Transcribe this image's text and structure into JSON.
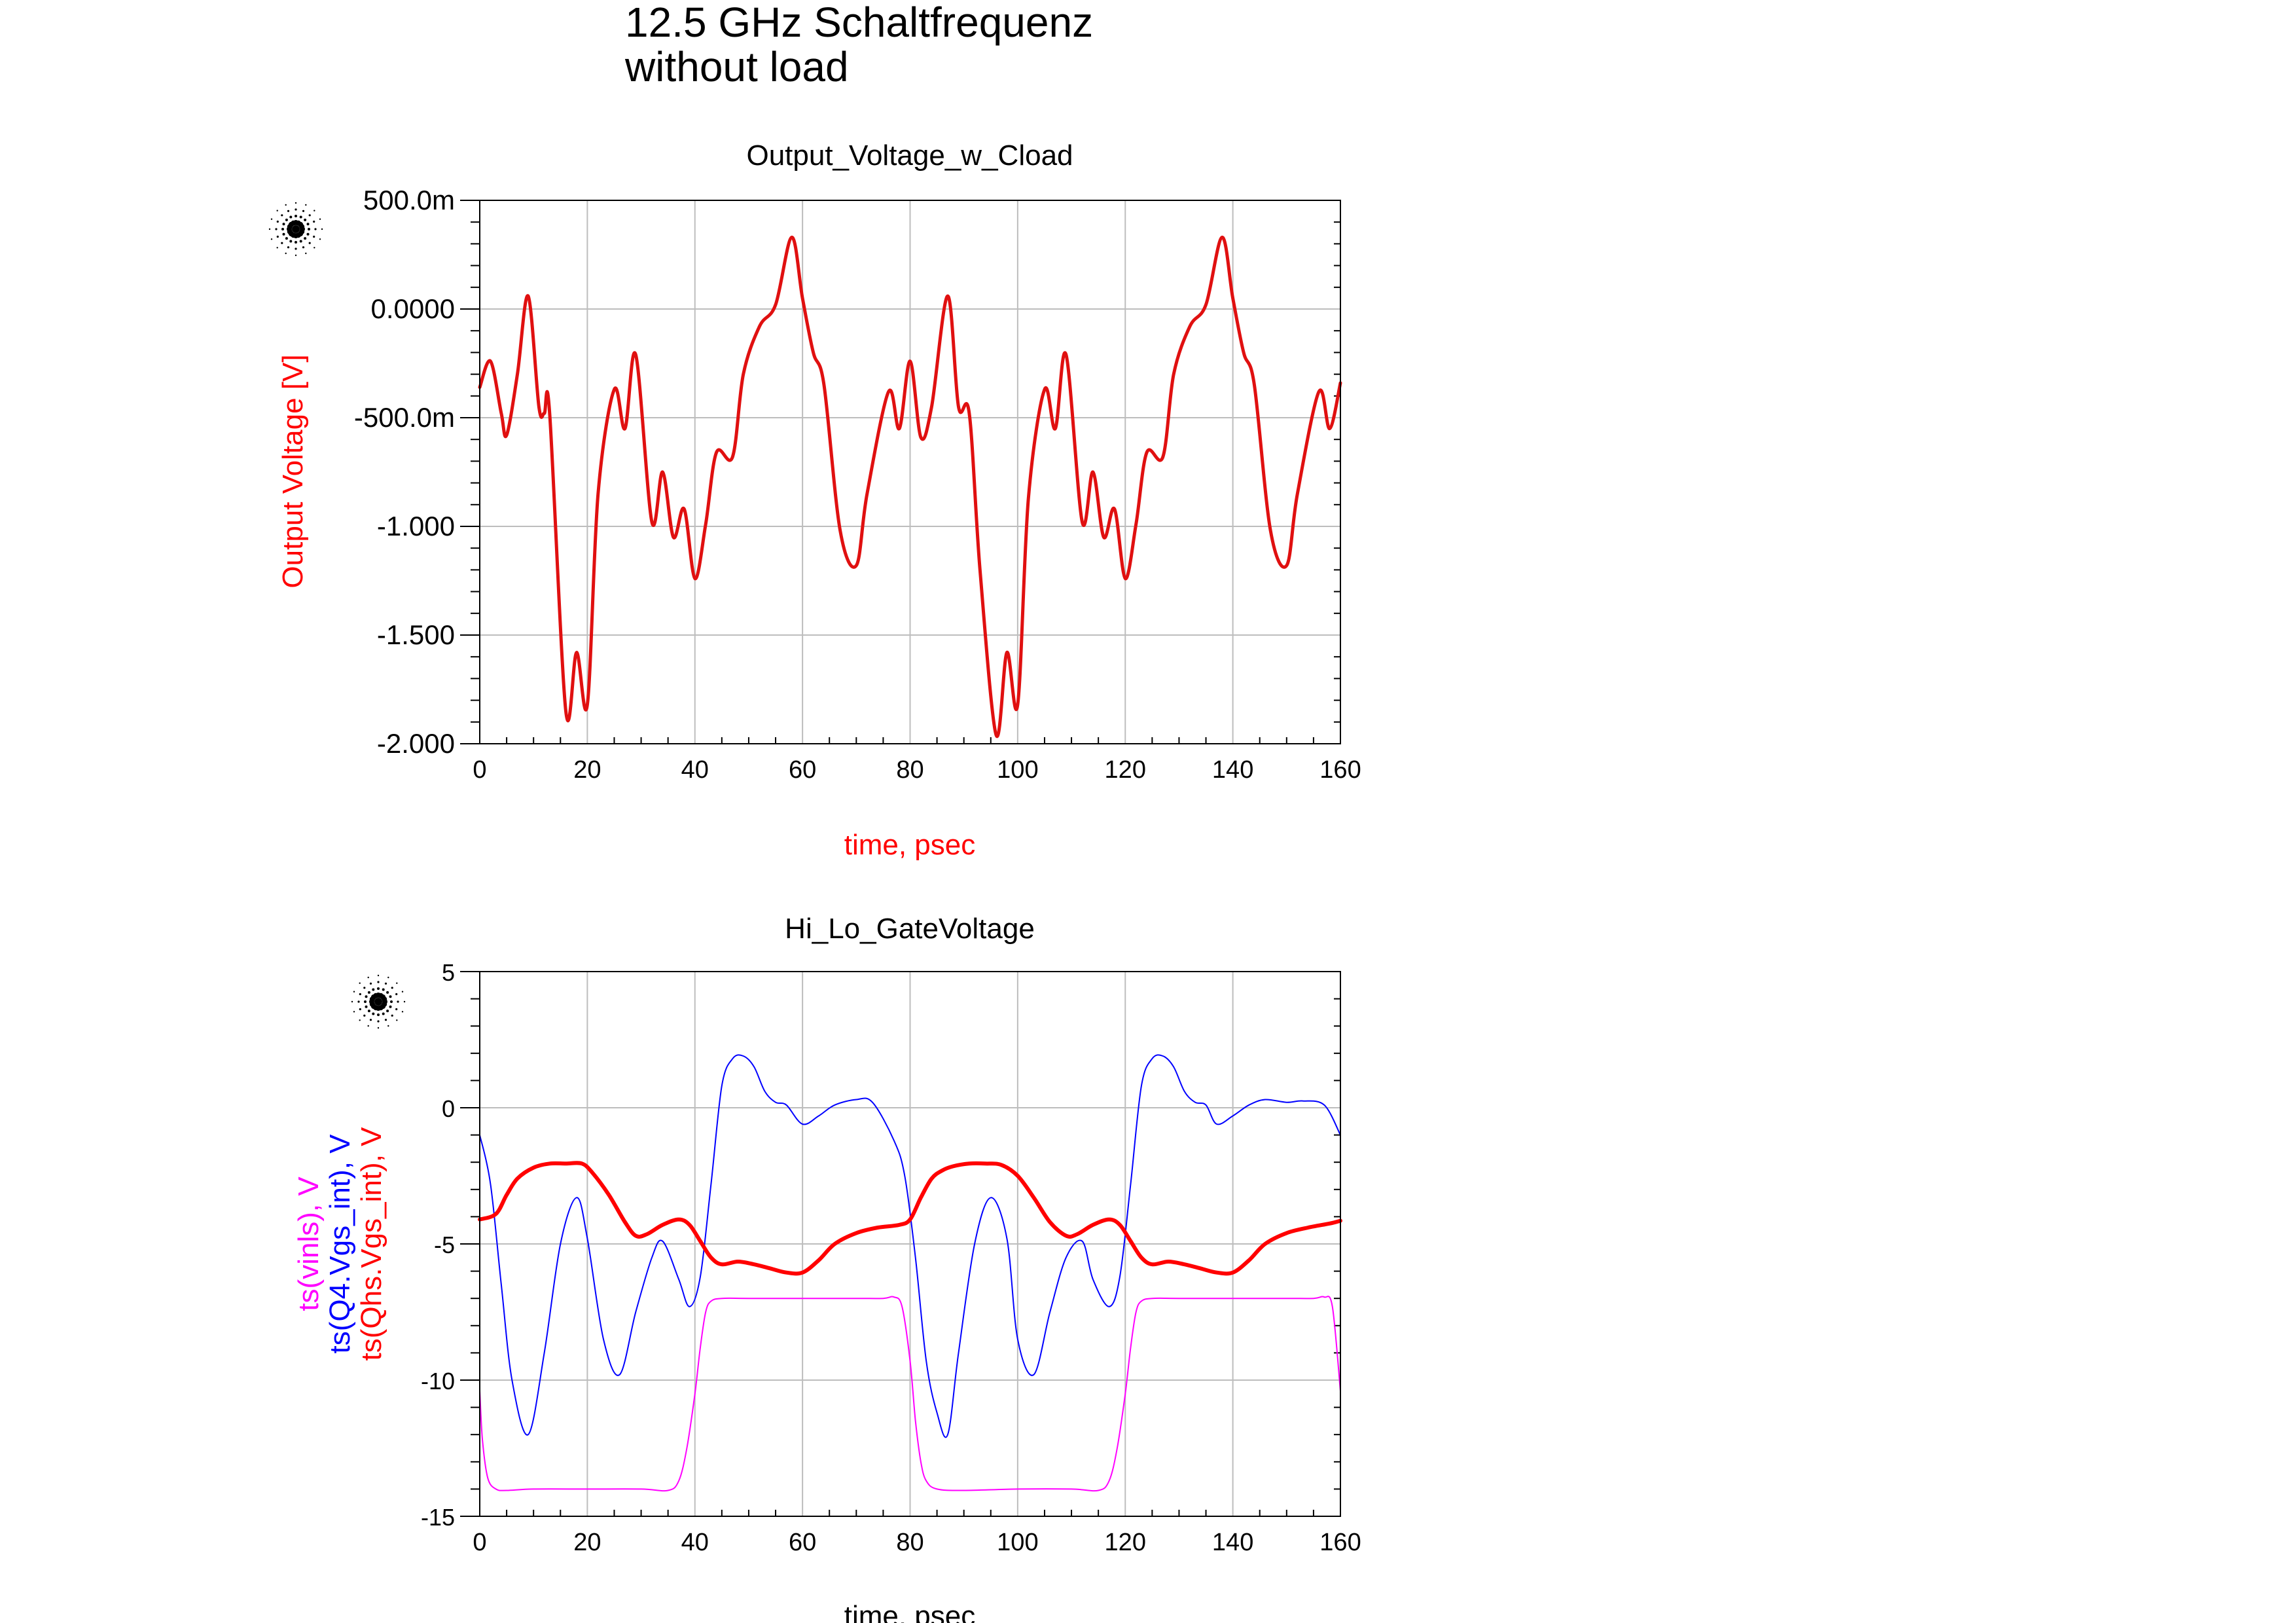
{
  "heading": {
    "line1": "12.5 GHz Schaltfrequenz",
    "line2": "without load"
  },
  "marker_icon": "agilent-starburst-icon",
  "chart_data": [
    {
      "type": "line",
      "title": "Output_Voltage_w_Cload",
      "xlabel": "time, psec",
      "ylabel": "Output Voltage [V]",
      "xlim": [
        0,
        160
      ],
      "ylim": [
        -2.0,
        0.5
      ],
      "x_ticks": [
        "0",
        "20",
        "40",
        "60",
        "80",
        "100",
        "120",
        "140",
        "160"
      ],
      "y_ticks": [
        "500.0m",
        "0.0000",
        "-500.0m",
        "-1.000",
        "-1.500",
        "-2.000"
      ],
      "y_tick_values": [
        0.5,
        0.0,
        -0.5,
        -1.0,
        -1.5,
        -2.0
      ],
      "grid": true,
      "label_color": "#ff0000",
      "series": [
        {
          "name": "",
          "color": "#e01010",
          "x": [
            0,
            2,
            4,
            5,
            7,
            9,
            11,
            12,
            13,
            16,
            18,
            20,
            22,
            25,
            27,
            29,
            32,
            34,
            36,
            38,
            40,
            42,
            44,
            47,
            49,
            52,
            55,
            58,
            60,
            62,
            64,
            67,
            70,
            72,
            76,
            78,
            80,
            82,
            84,
            87,
            89,
            91,
            93,
            96,
            98,
            100,
            102,
            105,
            107,
            109,
            112,
            114,
            116,
            118,
            120,
            122,
            124,
            127,
            129,
            132,
            135,
            138,
            140,
            142,
            144,
            147,
            150,
            152,
            156,
            158,
            160
          ],
          "y": [
            -0.36,
            -0.24,
            -0.48,
            -0.58,
            -0.3,
            0.06,
            -0.45,
            -0.48,
            -0.48,
            -1.85,
            -1.58,
            -1.82,
            -0.85,
            -0.37,
            -0.55,
            -0.21,
            -0.98,
            -0.75,
            -1.05,
            -0.92,
            -1.24,
            -0.99,
            -0.66,
            -0.68,
            -0.3,
            -0.08,
            0.02,
            0.33,
            0.05,
            -0.2,
            -0.35,
            -1.02,
            -1.18,
            -0.85,
            -0.38,
            -0.55,
            -0.24,
            -0.59,
            -0.45,
            0.06,
            -0.45,
            -0.48,
            -1.2,
            -1.96,
            -1.58,
            -1.82,
            -0.87,
            -0.37,
            -0.55,
            -0.21,
            -0.98,
            -0.75,
            -1.05,
            -0.92,
            -1.24,
            -0.99,
            -0.66,
            -0.68,
            -0.3,
            -0.08,
            0.02,
            0.33,
            0.05,
            -0.2,
            -0.35,
            -1.02,
            -1.18,
            -0.85,
            -0.38,
            -0.55,
            -0.34
          ]
        }
      ]
    },
    {
      "type": "line",
      "title": "Hi_Lo_GateVoltage",
      "xlabel": "time, psec",
      "ylabel": "",
      "xlim": [
        0,
        160
      ],
      "ylim": [
        -15,
        5
      ],
      "x_ticks": [
        "0",
        "20",
        "40",
        "60",
        "80",
        "100",
        "120",
        "140",
        "160"
      ],
      "y_ticks": [
        "5",
        "0",
        "-5",
        "-10",
        "-15"
      ],
      "y_tick_values": [
        5,
        0,
        -5,
        -10,
        -15
      ],
      "grid": true,
      "y_legend": [
        {
          "label": "ts(vinls), V",
          "color": "#ff00ff"
        },
        {
          "label": "ts(Q4.Vgs_int), V",
          "color": "#0000ff"
        },
        {
          "label": "ts(Qhs.Vgs_int), V",
          "color": "#ff0000"
        }
      ],
      "series": [
        {
          "name": "ts(vinls), V",
          "color": "#ff00ff",
          "width": 2,
          "x": [
            0,
            0.5,
            1.5,
            3,
            5,
            10,
            20,
            30,
            35,
            37,
            38.5,
            40,
            41,
            42,
            43,
            45,
            50,
            60,
            70,
            75,
            77,
            78.5,
            80,
            81,
            82,
            83,
            85,
            90,
            100,
            110,
            115,
            117,
            118.5,
            120,
            121,
            122,
            123,
            125,
            130,
            140,
            150,
            155,
            157,
            158.5,
            160
          ],
          "y": [
            -10.4,
            -12.2,
            -13.6,
            -14.0,
            -14.05,
            -14.0,
            -14.0,
            -14.0,
            -14.05,
            -13.7,
            -12.5,
            -10.5,
            -8.8,
            -7.5,
            -7.1,
            -7.0,
            -7.0,
            -7.0,
            -7.0,
            -7.0,
            -6.95,
            -7.3,
            -9.3,
            -11.5,
            -13.0,
            -13.7,
            -14.0,
            -14.05,
            -14.0,
            -14.0,
            -14.05,
            -13.7,
            -12.5,
            -10.5,
            -8.8,
            -7.5,
            -7.1,
            -7.0,
            -7.0,
            -7.0,
            -7.0,
            -7.0,
            -6.95,
            -7.3,
            -10.4
          ]
        },
        {
          "name": "ts(Q4.Vgs_int), V",
          "color": "#0000ff",
          "width": 2,
          "x": [
            0,
            2,
            4,
            6,
            9,
            12,
            15,
            18,
            20,
            23,
            26,
            29,
            32,
            34,
            37,
            39,
            41,
            43,
            45,
            47,
            49,
            51,
            53,
            55,
            57,
            60,
            63,
            66,
            70,
            73,
            77,
            79,
            81,
            83,
            85,
            87,
            89,
            92,
            95,
            98,
            100,
            103,
            106,
            109,
            112,
            114,
            117,
            119,
            121,
            123,
            125,
            127,
            129,
            131,
            133,
            135,
            137,
            140,
            143,
            146,
            150,
            153,
            157,
            160
          ],
          "y": [
            -1.0,
            -2.8,
            -6.5,
            -10.0,
            -12.0,
            -9.0,
            -5.0,
            -3.3,
            -4.8,
            -8.5,
            -9.8,
            -7.5,
            -5.5,
            -4.9,
            -6.3,
            -7.3,
            -6.2,
            -2.8,
            0.8,
            1.8,
            1.9,
            1.5,
            0.6,
            0.2,
            0.1,
            -0.6,
            -0.3,
            0.1,
            0.3,
            0.2,
            -1.2,
            -2.5,
            -5.5,
            -9.3,
            -11.2,
            -12.0,
            -9.0,
            -5.0,
            -3.3,
            -4.8,
            -8.5,
            -9.8,
            -7.5,
            -5.5,
            -4.9,
            -6.3,
            -7.3,
            -6.2,
            -2.8,
            0.8,
            1.8,
            1.9,
            1.5,
            0.6,
            0.2,
            0.1,
            -0.6,
            -0.3,
            0.1,
            0.3,
            0.2,
            0.25,
            0.1,
            -1.0
          ]
        },
        {
          "name": "ts(Qhs.Vgs_int), V",
          "color": "#ff0000",
          "width": 6,
          "x": [
            0,
            3,
            5,
            7,
            10,
            13,
            16,
            19,
            21,
            24,
            27,
            29,
            31,
            34,
            37,
            39,
            41,
            43,
            45,
            48,
            51,
            54,
            57,
            60,
            63,
            66,
            70,
            74,
            78,
            80,
            82,
            84,
            86,
            88,
            91,
            94,
            97,
            100,
            103,
            106,
            109,
            111,
            114,
            117,
            119,
            121,
            123,
            125,
            128,
            131,
            134,
            137,
            140,
            143,
            146,
            150,
            154,
            158,
            160
          ],
          "y": [
            -4.1,
            -3.9,
            -3.2,
            -2.6,
            -2.2,
            -2.05,
            -2.05,
            -2.05,
            -2.4,
            -3.2,
            -4.2,
            -4.7,
            -4.65,
            -4.3,
            -4.1,
            -4.3,
            -4.9,
            -5.5,
            -5.75,
            -5.65,
            -5.75,
            -5.9,
            -6.05,
            -6.05,
            -5.6,
            -5.0,
            -4.6,
            -4.4,
            -4.3,
            -4.1,
            -3.3,
            -2.6,
            -2.3,
            -2.15,
            -2.05,
            -2.05,
            -2.1,
            -2.5,
            -3.3,
            -4.2,
            -4.7,
            -4.65,
            -4.3,
            -4.1,
            -4.3,
            -4.9,
            -5.5,
            -5.75,
            -5.65,
            -5.75,
            -5.9,
            -6.05,
            -6.05,
            -5.6,
            -5.0,
            -4.6,
            -4.4,
            -4.25,
            -4.15
          ]
        }
      ]
    }
  ]
}
